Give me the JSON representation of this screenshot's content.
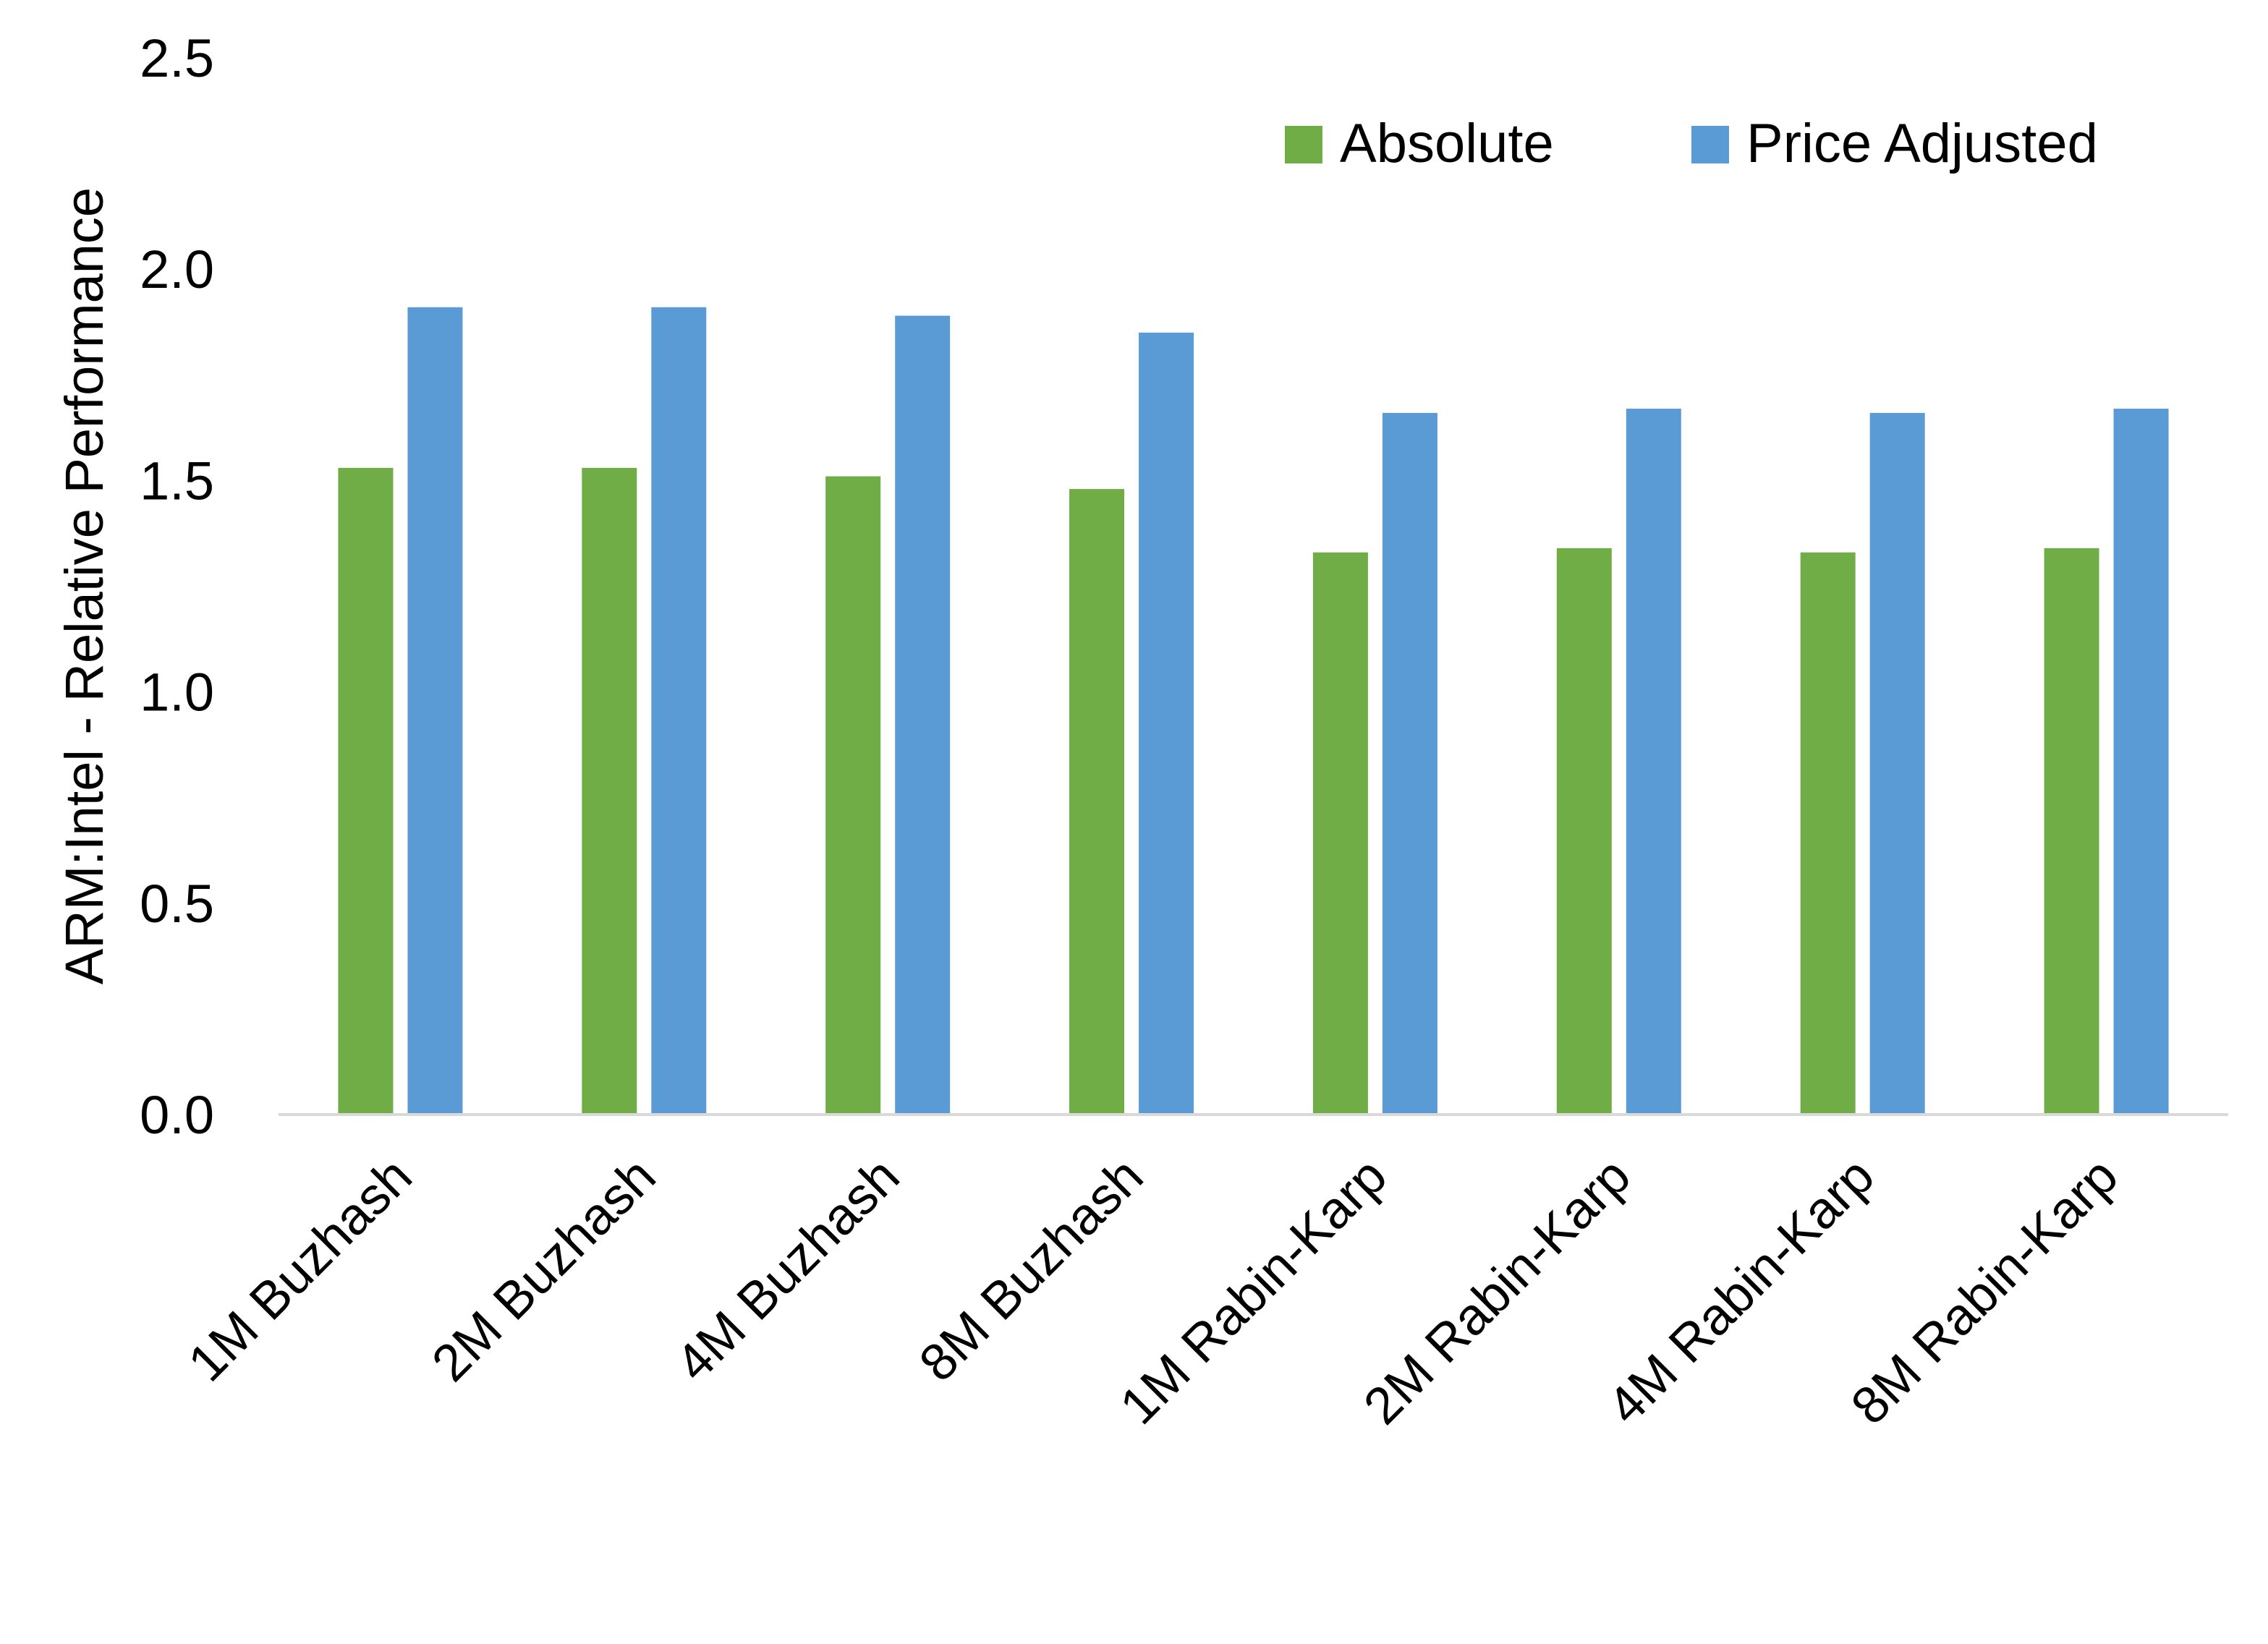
{
  "chart_data": {
    "type": "bar",
    "title": "",
    "xlabel": "",
    "ylabel": "ARM:Intel - Relative Performance",
    "ylim": [
      0,
      2.5
    ],
    "yticks": [
      "0.0",
      "0.5",
      "1.0",
      "1.5",
      "2.0",
      "2.5"
    ],
    "grid": false,
    "legend_placement": "top-right",
    "categories": [
      "1M Buzhash",
      "2M Buzhash",
      "4M Buzhash",
      "8M Buzhash",
      "1M Rabin-Karp",
      "2M Rabin-Karp",
      "4M Rabin-Karp",
      "8M Rabin-Karp"
    ],
    "series": [
      {
        "name": "Absolute",
        "color": "#70AD47",
        "values": [
          1.53,
          1.53,
          1.51,
          1.48,
          1.33,
          1.34,
          1.33,
          1.34
        ]
      },
      {
        "name": "Price Adjusted",
        "color": "#5B9BD5",
        "values": [
          1.91,
          1.91,
          1.89,
          1.85,
          1.66,
          1.67,
          1.66,
          1.67
        ]
      }
    ]
  }
}
